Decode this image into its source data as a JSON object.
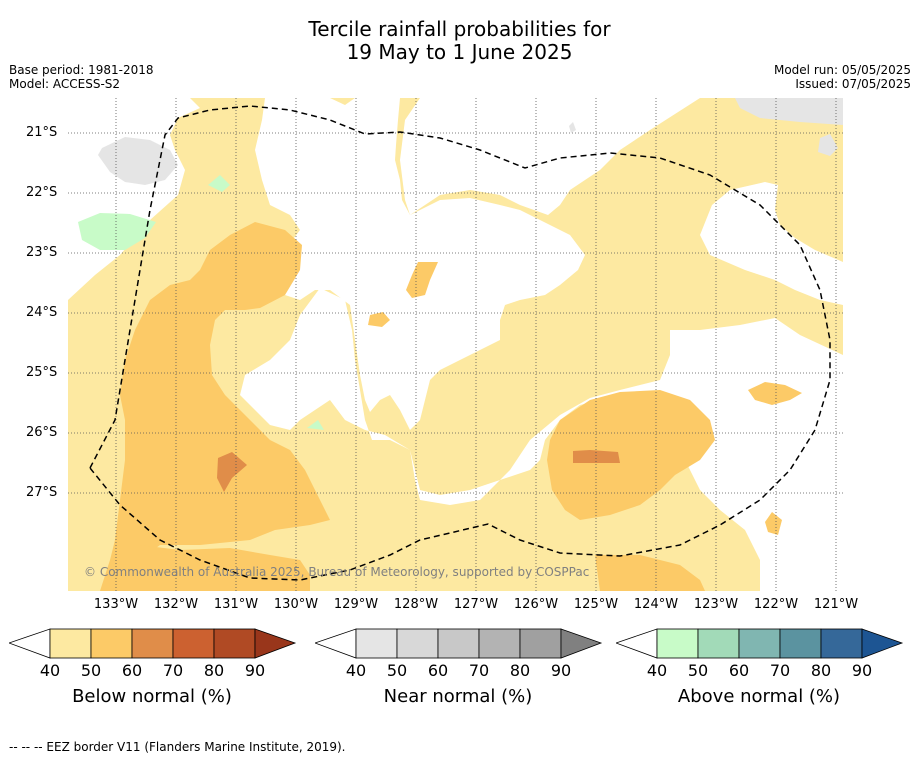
{
  "title": {
    "line1": "Tercile rainfall probabilities for",
    "line2": "19 May to 1 June 2025"
  },
  "meta": {
    "base_period": "Base period: 1981-2018",
    "model": "Model: ACCESS-S2",
    "model_run": "Model run: 05/05/2025",
    "issued": "Issued: 07/05/2025"
  },
  "map": {
    "copyright": "© Commonwealth of Australia 2025, Bureau of Meteorology, supported by COSPPac",
    "lon_ticks": [
      "133°W",
      "132°W",
      "131°W",
      "130°W",
      "129°W",
      "128°W",
      "127°W",
      "126°W",
      "125°W",
      "124°W",
      "123°W",
      "122°W",
      "121°W"
    ],
    "lat_ticks": [
      "21°S",
      "22°S",
      "23°S",
      "24°S",
      "25°S",
      "26°S",
      "27°S"
    ],
    "border_style": "dashed",
    "colors": {
      "below_40": "#fde9a1",
      "below_50": "#fcca67",
      "below_60": "#e08d49",
      "near_40": "#e5e5e5",
      "above_40": "#c8fbc8",
      "grid": "#555555"
    }
  },
  "colorbars": [
    {
      "title": "Below normal (%)",
      "ticks": [
        "40",
        "50",
        "60",
        "70",
        "80",
        "90"
      ],
      "colors": [
        "#fde9a1",
        "#fcca67",
        "#e08d49",
        "#cc6130",
        "#b04a24",
        "#99361b"
      ]
    },
    {
      "title": "Near normal (%)",
      "ticks": [
        "40",
        "50",
        "60",
        "70",
        "80",
        "90"
      ],
      "colors": [
        "#e5e5e5",
        "#d8d8d8",
        "#c8c8c8",
        "#b3b3b3",
        "#a0a0a0",
        "#808080"
      ]
    },
    {
      "title": "Above normal (%)",
      "ticks": [
        "40",
        "50",
        "60",
        "70",
        "80",
        "90"
      ],
      "colors": [
        "#c8fbc8",
        "#a2dab8",
        "#80b6b1",
        "#5b93a0",
        "#356899",
        "#1d5593"
      ]
    }
  ],
  "footnote": "-- -- -- EEZ border V11 (Flanders Marine Institute, 2019)."
}
